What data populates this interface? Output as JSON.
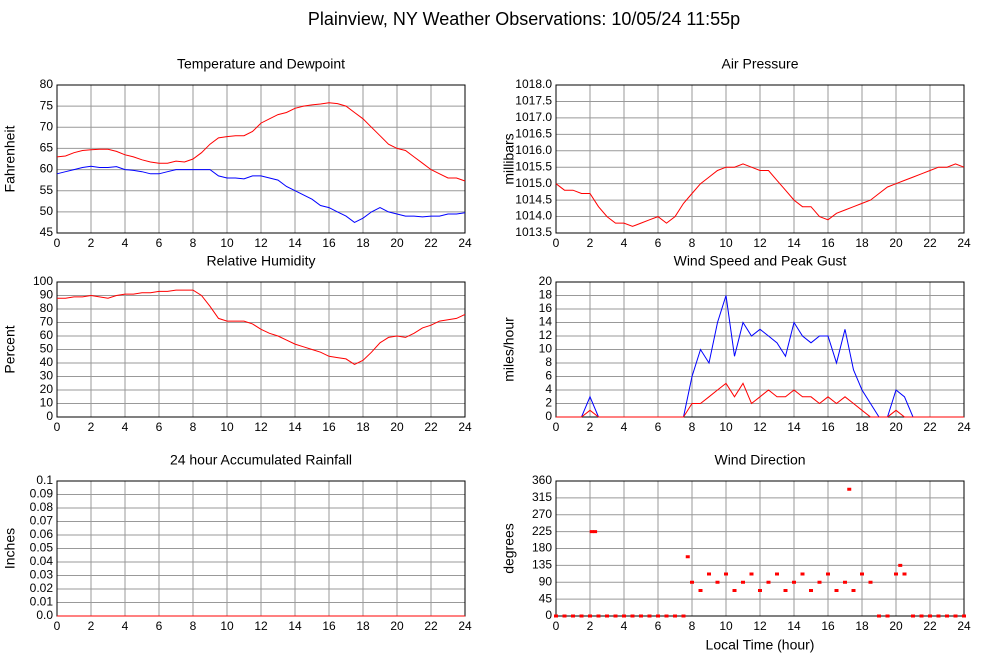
{
  "title": "Plainview, NY Weather Observations: 10/05/24 11:55p",
  "chart_data": [
    {
      "type": "line",
      "title": "Temperature and Dewpoint",
      "ylabel": "Fahrenheit",
      "x": [
        0,
        0.5,
        1,
        1.5,
        2,
        2.5,
        3,
        3.5,
        4,
        4.5,
        5,
        5.5,
        6,
        6.5,
        7,
        7.5,
        8,
        8.5,
        9,
        9.5,
        10,
        10.5,
        11,
        11.5,
        12,
        12.5,
        13,
        13.5,
        14,
        14.5,
        15,
        15.5,
        16,
        16.5,
        17,
        17.5,
        18,
        18.5,
        19,
        19.5,
        20,
        20.5,
        21,
        21.5,
        22,
        22.5,
        23,
        23.5,
        24
      ],
      "series": [
        {
          "color": "#ff0000",
          "values": [
            63,
            63.2,
            64,
            64.5,
            64.7,
            64.8,
            64.8,
            64.3,
            63.5,
            63,
            62.3,
            61.8,
            61.5,
            61.5,
            62,
            61.8,
            62.5,
            64,
            66,
            67.5,
            67.8,
            68,
            68,
            69,
            71,
            72,
            73,
            73.5,
            74.5,
            75,
            75.3,
            75.5,
            75.8,
            75.6,
            75,
            73.5,
            72,
            70,
            68,
            66,
            65,
            64.5,
            63,
            61.5,
            60,
            59,
            58,
            58,
            57.3
          ]
        },
        {
          "color": "#0000ff",
          "values": [
            59,
            59.5,
            60,
            60.5,
            60.8,
            60.5,
            60.5,
            60.7,
            60,
            59.8,
            59.5,
            59,
            59,
            59.5,
            60,
            60,
            60,
            60,
            60,
            58.5,
            58,
            58,
            57.8,
            58.5,
            58.5,
            58,
            57.5,
            56,
            55,
            54,
            53,
            51.5,
            51,
            50,
            49,
            47.5,
            48.5,
            50,
            51,
            50,
            49.5,
            49,
            49,
            48.8,
            49,
            49,
            49.5,
            49.5,
            49.8
          ]
        }
      ],
      "xlim": [
        0,
        24
      ],
      "xticks": [
        0,
        2,
        4,
        6,
        8,
        10,
        12,
        14,
        16,
        18,
        20,
        22,
        24
      ],
      "ylim": [
        45,
        80
      ],
      "yticks": [
        45,
        50,
        55,
        60,
        65,
        70,
        75,
        80
      ],
      "grid": true
    },
    {
      "type": "line",
      "title": "Air Pressure",
      "ylabel": "millibars",
      "x": [
        0,
        0.5,
        1,
        1.5,
        2,
        2.5,
        3,
        3.5,
        4,
        4.5,
        5,
        5.5,
        6,
        6.5,
        7,
        7.5,
        8,
        8.5,
        9,
        9.5,
        10,
        10.5,
        11,
        11.5,
        12,
        12.5,
        13,
        13.5,
        14,
        14.5,
        15,
        15.5,
        16,
        16.5,
        17,
        17.5,
        18,
        18.5,
        19,
        19.5,
        20,
        20.5,
        21,
        21.5,
        22,
        22.5,
        23,
        23.5,
        24
      ],
      "series": [
        {
          "color": "#ff0000",
          "values": [
            1015,
            1014.8,
            1014.8,
            1014.7,
            1014.7,
            1014.3,
            1014,
            1013.8,
            1013.8,
            1013.7,
            1013.8,
            1013.9,
            1014,
            1013.8,
            1014,
            1014.4,
            1014.7,
            1015,
            1015.2,
            1015.4,
            1015.5,
            1015.5,
            1015.6,
            1015.5,
            1015.4,
            1015.4,
            1015.1,
            1014.8,
            1014.5,
            1014.3,
            1014.3,
            1014,
            1013.9,
            1014.1,
            1014.2,
            1014.3,
            1014.4,
            1014.5,
            1014.7,
            1014.9,
            1015,
            1015.1,
            1015.2,
            1015.3,
            1015.4,
            1015.5,
            1015.5,
            1015.6,
            1015.5
          ]
        }
      ],
      "xlim": [
        0,
        24
      ],
      "xticks": [
        0,
        2,
        4,
        6,
        8,
        10,
        12,
        14,
        16,
        18,
        20,
        22,
        24
      ],
      "ylim": [
        1013.5,
        1018
      ],
      "yticks": [
        1013.5,
        {
          "value": 1014,
          "label": "1014.0"
        },
        1014.5,
        {
          "value": 1015,
          "label": "1015.0"
        },
        1015.5,
        {
          "value": 1016,
          "label": "1016.0"
        },
        1016.5,
        {
          "value": 1017,
          "label": "1017.0"
        },
        1017.5,
        {
          "value": 1018,
          "label": "1018.0"
        }
      ],
      "grid": true
    },
    {
      "type": "line",
      "title": "Relative Humidity",
      "ylabel": "Percent",
      "x": [
        0,
        0.5,
        1,
        1.5,
        2,
        2.5,
        3,
        3.5,
        4,
        4.5,
        5,
        5.5,
        6,
        6.5,
        7,
        7.5,
        8,
        8.5,
        9,
        9.5,
        10,
        10.5,
        11,
        11.5,
        12,
        12.5,
        13,
        13.5,
        14,
        14.5,
        15,
        15.5,
        16,
        16.5,
        17,
        17.5,
        18,
        18.5,
        19,
        19.5,
        20,
        20.5,
        21,
        21.5,
        22,
        22.5,
        23,
        23.5,
        24
      ],
      "series": [
        {
          "color": "#ff0000",
          "values": [
            88,
            88,
            89,
            89,
            90,
            89,
            88,
            90,
            91,
            91,
            92,
            92,
            93,
            93,
            94,
            94,
            94,
            90,
            82,
            73,
            71,
            71,
            71,
            69,
            65,
            62,
            60,
            57,
            54,
            52,
            50,
            48,
            45,
            44,
            43,
            39,
            42,
            48,
            55,
            59,
            60,
            59,
            62,
            66,
            68,
            71,
            72,
            73,
            76
          ]
        }
      ],
      "xlim": [
        0,
        24
      ],
      "xticks": [
        0,
        2,
        4,
        6,
        8,
        10,
        12,
        14,
        16,
        18,
        20,
        22,
        24
      ],
      "ylim": [
        0,
        100
      ],
      "yticks": [
        0,
        10,
        20,
        30,
        40,
        50,
        60,
        70,
        80,
        90,
        100
      ],
      "grid": true
    },
    {
      "type": "line",
      "title": "Wind Speed and Peak Gust",
      "ylabel": "miles/hour",
      "x": [
        0,
        0.5,
        1,
        1.5,
        2,
        2.5,
        3,
        3.5,
        4,
        4.5,
        5,
        5.5,
        6,
        6.5,
        7,
        7.5,
        8,
        8.5,
        9,
        9.5,
        10,
        10.5,
        11,
        11.5,
        12,
        12.5,
        13,
        13.5,
        14,
        14.5,
        15,
        15.5,
        16,
        16.5,
        17,
        17.5,
        18,
        18.5,
        19,
        19.5,
        20,
        20.5,
        21,
        21.5,
        22,
        22.5,
        23,
        23.5,
        24
      ],
      "series": [
        {
          "color": "#0000ff",
          "values": [
            0,
            0,
            0,
            0,
            3,
            0,
            0,
            0,
            0,
            0,
            0,
            0,
            0,
            0,
            0,
            0,
            6,
            10,
            8,
            14,
            18,
            9,
            14,
            12,
            13,
            12,
            11,
            9,
            14,
            12,
            11,
            12,
            12,
            8,
            13,
            7,
            4,
            2,
            0,
            0,
            4,
            3,
            0,
            0,
            0,
            0,
            0,
            0,
            0
          ]
        },
        {
          "color": "#ff0000",
          "values": [
            0,
            0,
            0,
            0,
            1,
            0,
            0,
            0,
            0,
            0,
            0,
            0,
            0,
            0,
            0,
            0,
            2,
            2,
            3,
            4,
            5,
            3,
            5,
            2,
            3,
            4,
            3,
            3,
            4,
            3,
            3,
            2,
            3,
            2,
            3,
            2,
            1,
            0,
            0,
            0,
            1,
            0,
            0,
            0,
            0,
            0,
            0,
            0,
            0
          ]
        }
      ],
      "xlim": [
        0,
        24
      ],
      "xticks": [
        0,
        2,
        4,
        6,
        8,
        10,
        12,
        14,
        16,
        18,
        20,
        22,
        24
      ],
      "ylim": [
        0,
        20
      ],
      "yticks": [
        0,
        2,
        4,
        6,
        8,
        10,
        12,
        14,
        16,
        18,
        20
      ],
      "grid": true
    },
    {
      "type": "line",
      "title": "24 hour Accumulated Rainfall",
      "ylabel": "Inches",
      "x": [
        0,
        24
      ],
      "series": [
        {
          "color": "#ff0000",
          "values": [
            0,
            0
          ]
        }
      ],
      "xlim": [
        0,
        24
      ],
      "xticks": [
        0,
        2,
        4,
        6,
        8,
        10,
        12,
        14,
        16,
        18,
        20,
        22,
        24
      ],
      "ylim": [
        0,
        0.1
      ],
      "yticks": [
        {
          "value": 0,
          "label": "0.0"
        },
        0.01,
        0.02,
        0.03,
        0.04,
        0.05,
        0.06,
        0.07,
        0.08,
        0.09,
        0.1
      ],
      "grid": true
    },
    {
      "type": "scatter",
      "title": "Wind Direction",
      "ylabel": "degrees",
      "xlabel": "Local Time (hour)",
      "x": [
        0,
        0.5,
        1,
        1.5,
        2,
        2.1,
        2.3,
        2.5,
        3,
        3.5,
        4,
        4.5,
        5,
        5.5,
        6,
        6.5,
        7,
        7.5,
        7.75,
        8,
        8.5,
        9,
        9.5,
        10,
        10.5,
        11,
        11.5,
        12,
        12.5,
        13,
        13.5,
        14,
        14.5,
        15,
        15.5,
        16,
        16.5,
        17,
        17.25,
        17.5,
        18,
        18.5,
        19,
        19.5,
        20,
        20.25,
        20.5,
        21,
        21.5,
        22,
        22.5,
        23,
        23.5,
        24
      ],
      "series": [
        {
          "color": "#ff0000",
          "values": [
            0,
            0,
            0,
            0,
            0,
            225,
            225,
            0,
            0,
            0,
            0,
            0,
            0,
            0,
            0,
            0,
            0,
            0,
            158,
            90,
            68,
            112,
            90,
            112,
            68,
            90,
            112,
            68,
            90,
            112,
            68,
            90,
            112,
            68,
            90,
            112,
            68,
            90,
            338,
            68,
            112,
            90,
            0,
            0,
            112,
            135,
            112,
            0,
            0,
            0,
            0,
            0,
            0,
            0
          ]
        }
      ],
      "xlim": [
        0,
        24
      ],
      "xticks": [
        0,
        2,
        4,
        6,
        8,
        10,
        12,
        14,
        16,
        18,
        20,
        22,
        24
      ],
      "ylim": [
        0,
        360
      ],
      "yticks": [
        0,
        45,
        90,
        135,
        180,
        225,
        270,
        315,
        360
      ],
      "grid": true
    }
  ]
}
